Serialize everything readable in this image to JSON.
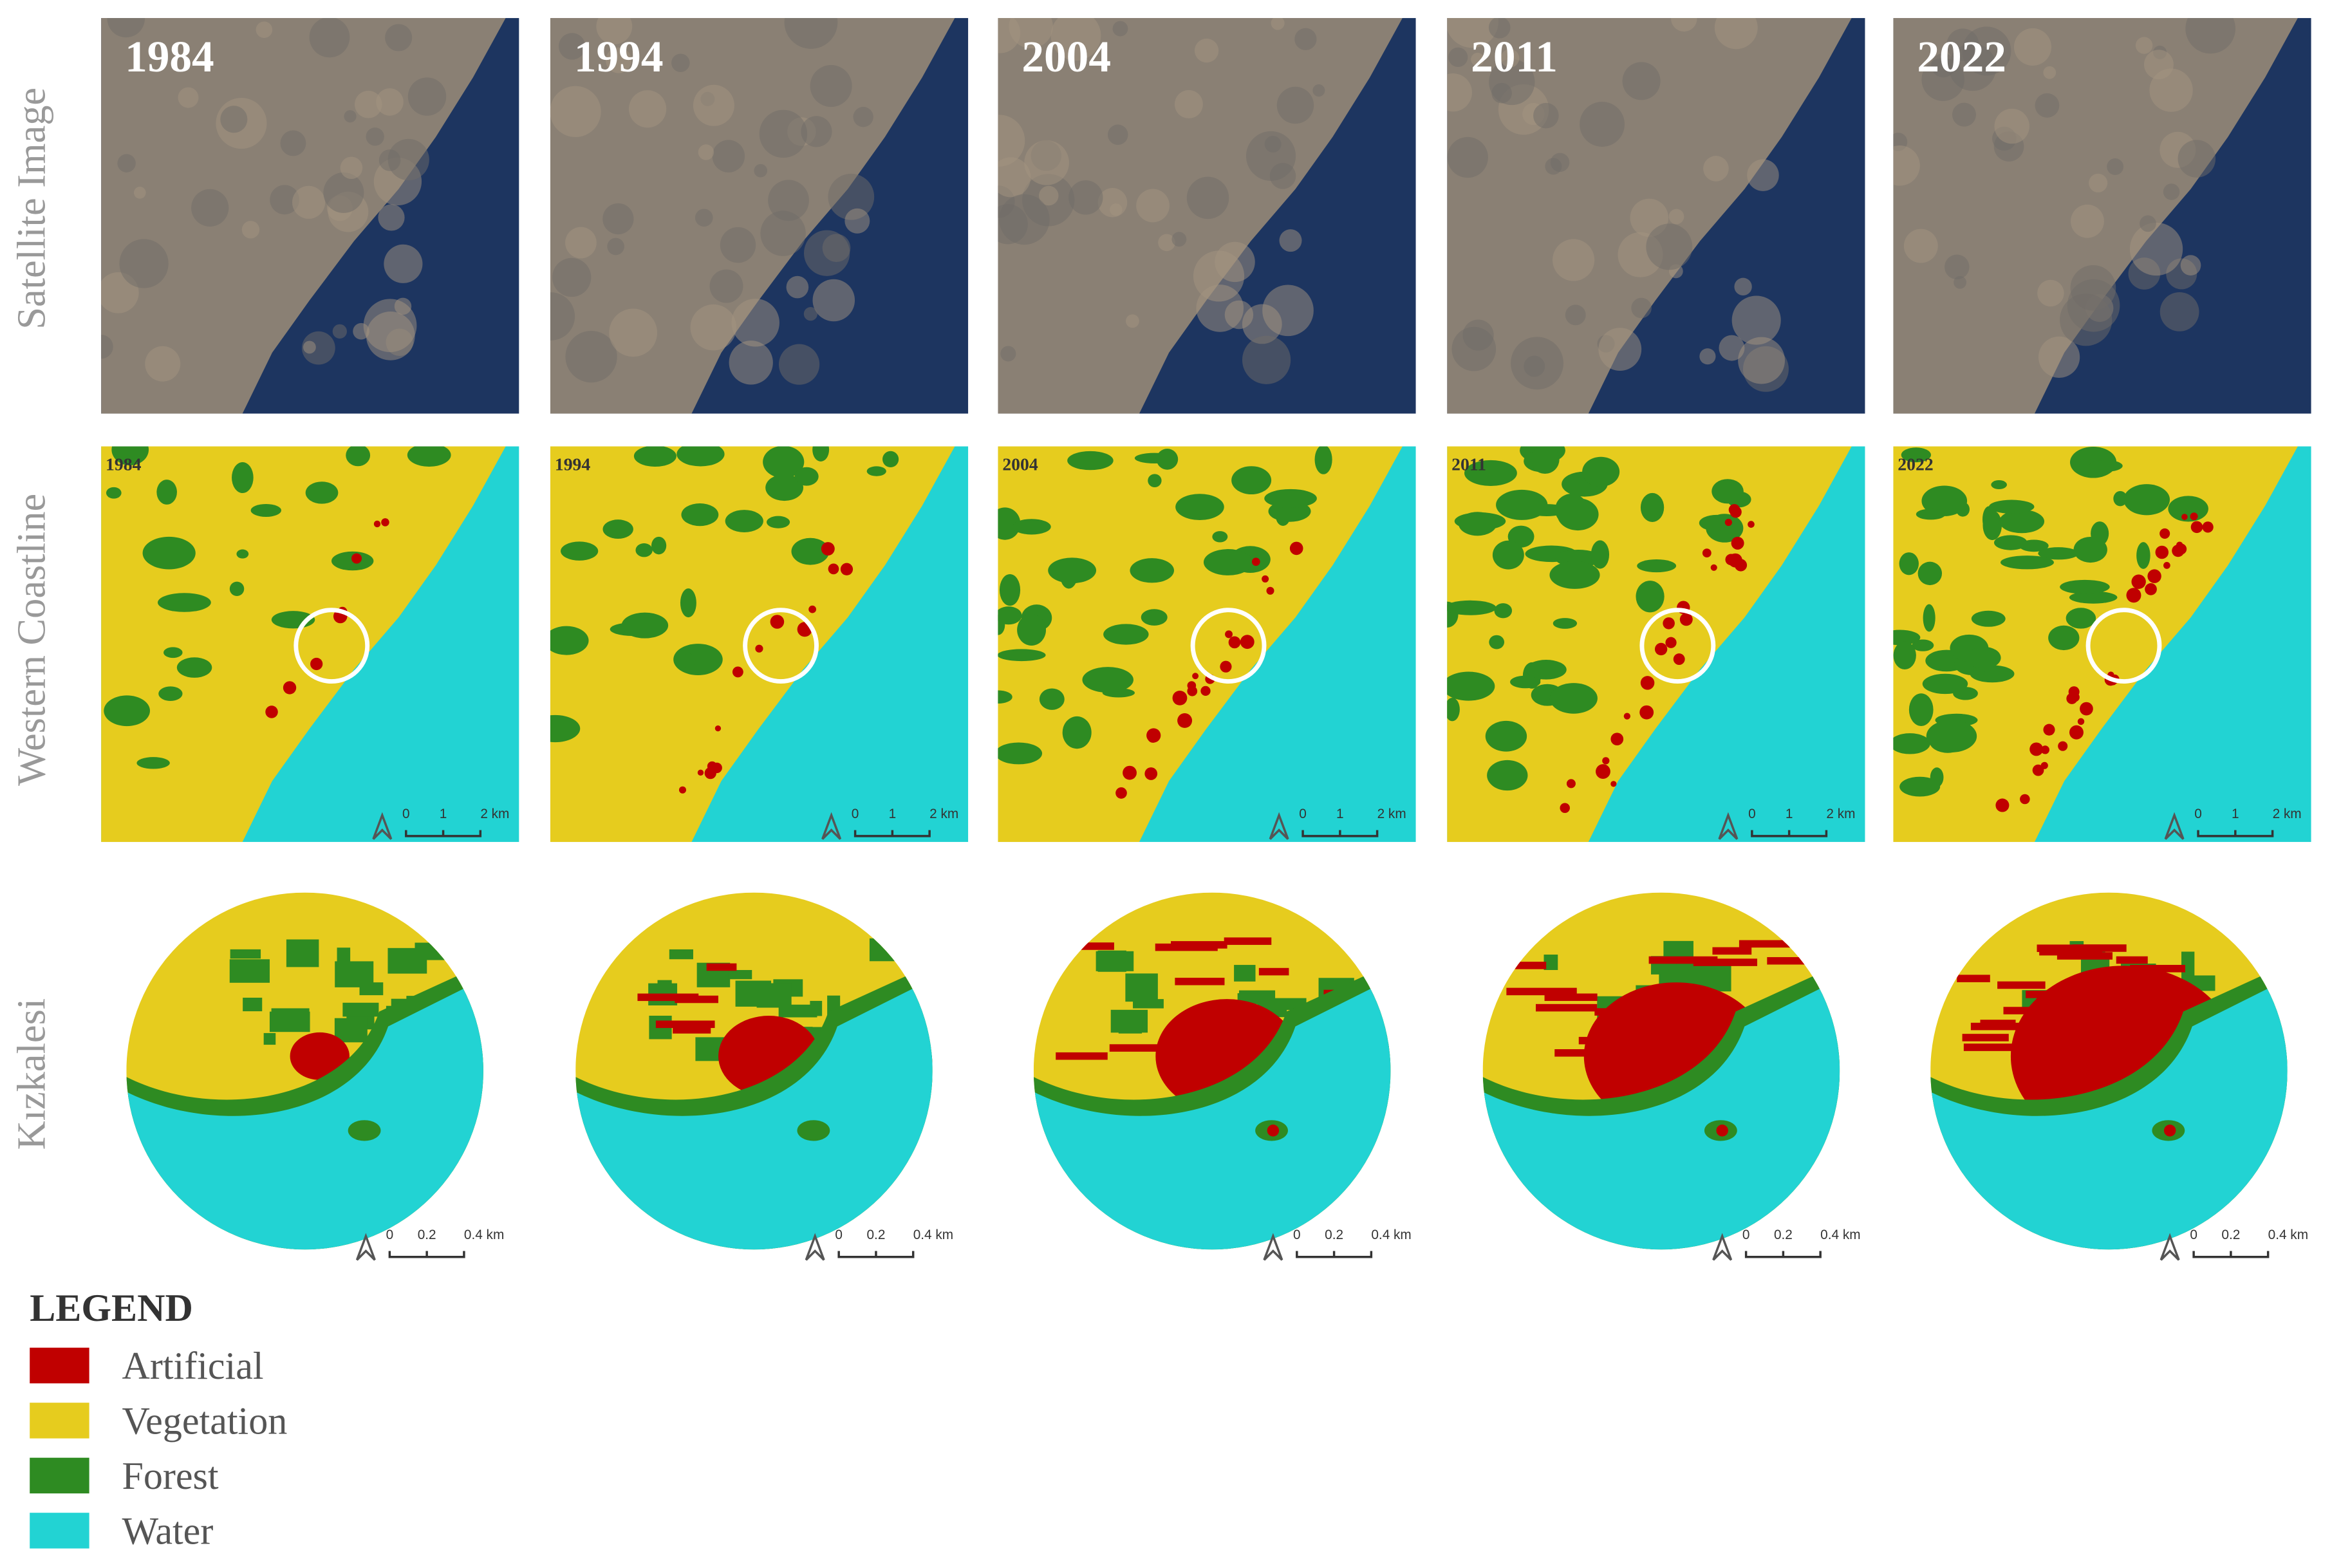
{
  "row_labels": [
    "Satellite Image",
    "Western Coastline",
    "Kızkalesi"
  ],
  "years": [
    "1984",
    "1994",
    "2004",
    "2011",
    "2022"
  ],
  "coastline_scale": [
    "0",
    "1",
    "2 km"
  ],
  "kizkalesi_scale": [
    "0",
    "0.2",
    "0.4 km"
  ],
  "legend": {
    "title": "LEGEND",
    "items": [
      {
        "label": "Artificial",
        "color": "#c00000"
      },
      {
        "label": "Vegetation",
        "color": "#e6cc1e"
      },
      {
        "label": "Forest",
        "color": "#2e8b22"
      },
      {
        "label": "Water",
        "color": "#22d3d3"
      }
    ]
  }
}
